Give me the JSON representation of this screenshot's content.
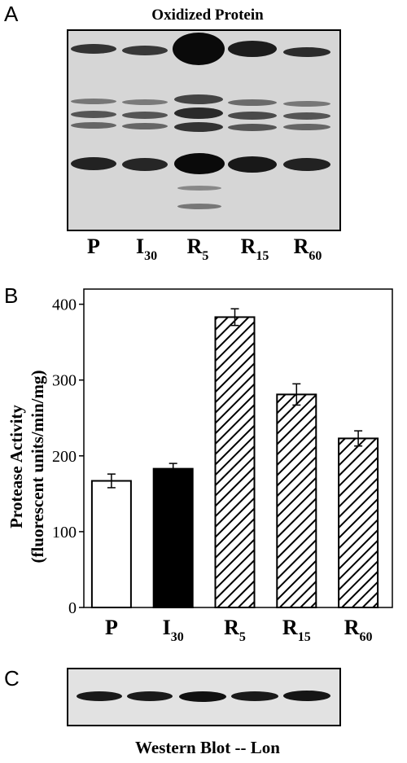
{
  "panels": {
    "a": "A",
    "b": "B",
    "c": "C"
  },
  "panel_a": {
    "title": "Oxidized Protein",
    "lanes": [
      {
        "main": "P",
        "sub": ""
      },
      {
        "main": "I",
        "sub": "30"
      },
      {
        "main": "R",
        "sub": "5"
      },
      {
        "main": "R",
        "sub": "15"
      },
      {
        "main": "R",
        "sub": "60"
      }
    ]
  },
  "panel_c": {
    "caption": "Western Blot -- Lon"
  },
  "chart_data": {
    "type": "bar",
    "categories": [
      {
        "main": "P",
        "sub": ""
      },
      {
        "main": "I",
        "sub": "30"
      },
      {
        "main": "R",
        "sub": "5"
      },
      {
        "main": "R",
        "sub": "15"
      },
      {
        "main": "R",
        "sub": "60"
      }
    ],
    "values": [
      167,
      183,
      383,
      281,
      223
    ],
    "errors": [
      9,
      7,
      11,
      14,
      10
    ],
    "fills": [
      "white",
      "solid",
      "hatched",
      "hatched",
      "hatched"
    ],
    "ylabel_line1": "Protease Activity",
    "ylabel_line2": "(fluorescent units/min/mg)",
    "ylim": [
      0,
      420
    ],
    "yticks": [
      0,
      100,
      200,
      300,
      400
    ],
    "grid": false
  }
}
